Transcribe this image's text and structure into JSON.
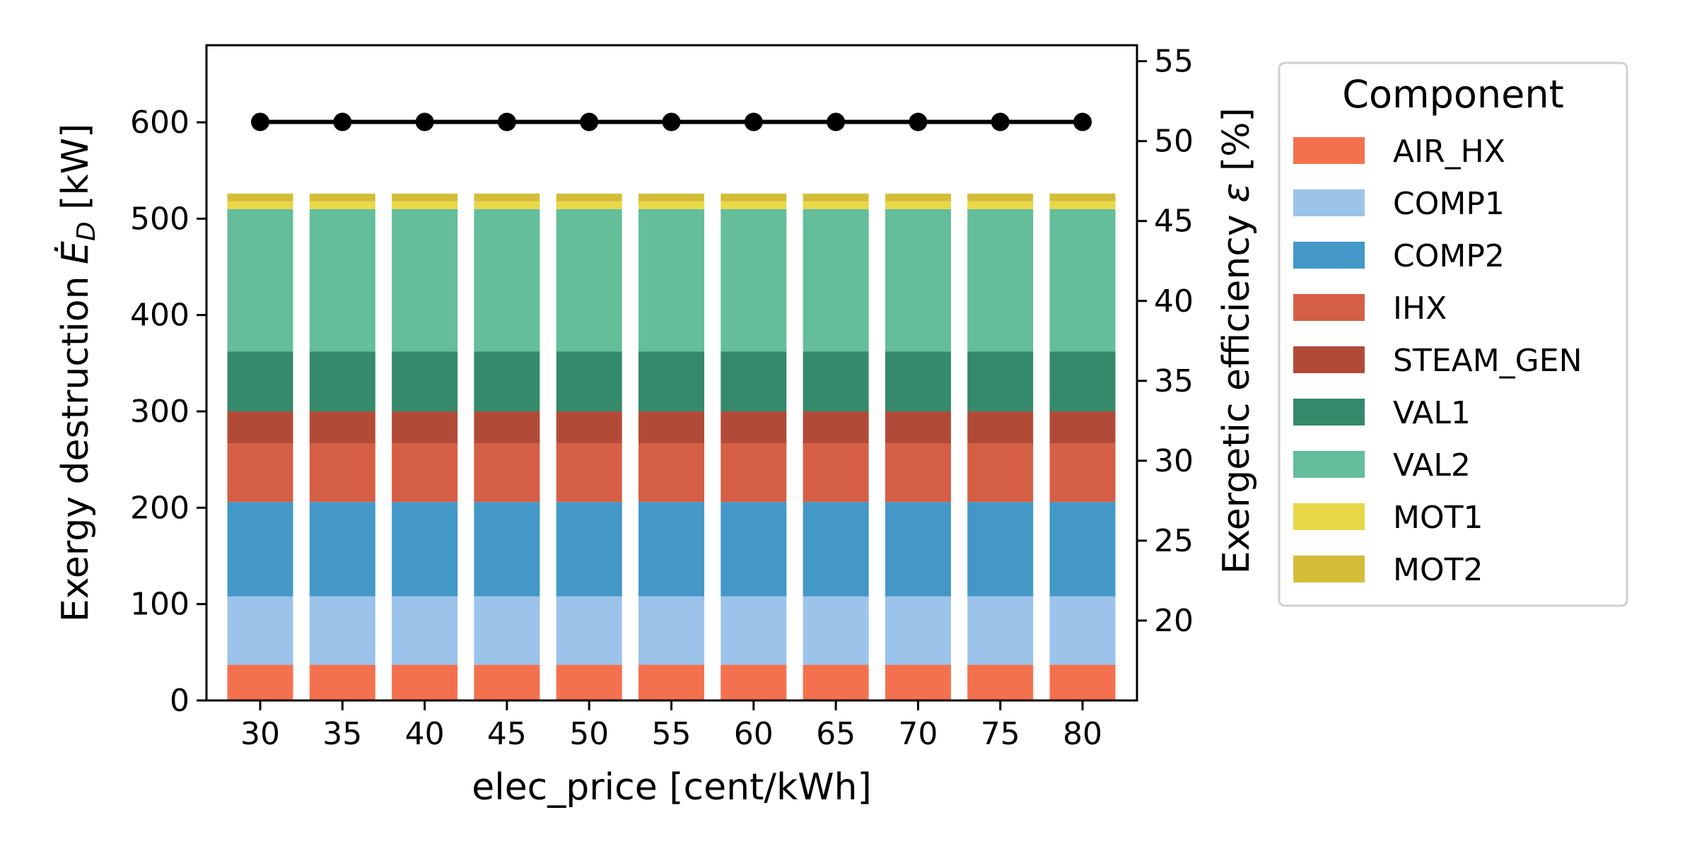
{
  "chart_data": {
    "type": "bar",
    "stacked": true,
    "xlabel": "elec_price [cent/kWh]",
    "ylabel_left": {
      "main": "Exergy destruction ",
      "symbol": "Ė",
      "sub": "D",
      "unit": " [kW]"
    },
    "ylabel_right": {
      "main": "Exergetic efficiency ",
      "symbol": "ε",
      "unit": " [%]"
    },
    "categories": [
      "30",
      "35",
      "40",
      "45",
      "50",
      "55",
      "60",
      "65",
      "70",
      "75",
      "80"
    ],
    "x_values": [
      30,
      35,
      40,
      45,
      50,
      55,
      60,
      65,
      70,
      75,
      80
    ],
    "ylim_left": [
      0,
      680
    ],
    "yticks_left": [
      0,
      100,
      200,
      300,
      400,
      500,
      600
    ],
    "ylim_right": [
      15,
      56
    ],
    "yticks_right": [
      20,
      25,
      30,
      35,
      40,
      45,
      50,
      55
    ],
    "series": [
      {
        "name": "AIR_HX",
        "color": "#f4714f",
        "values": [
          37,
          37,
          37,
          37,
          37,
          37,
          37,
          37,
          37,
          37,
          37
        ]
      },
      {
        "name": "COMP1",
        "color": "#9cc3ea",
        "values": [
          71,
          71,
          71,
          71,
          71,
          71,
          71,
          71,
          71,
          71,
          71
        ]
      },
      {
        "name": "COMP2",
        "color": "#4398c8",
        "values": [
          98,
          98,
          98,
          98,
          98,
          98,
          98,
          98,
          98,
          98,
          98
        ]
      },
      {
        "name": "IHX",
        "color": "#d55f45",
        "values": [
          61,
          61,
          61,
          61,
          61,
          61,
          61,
          61,
          61,
          61,
          61
        ]
      },
      {
        "name": "STEAM_GEN",
        "color": "#b14b37",
        "values": [
          33,
          33,
          33,
          33,
          33,
          33,
          33,
          33,
          33,
          33,
          33
        ]
      },
      {
        "name": "VAL1",
        "color": "#348a6b",
        "values": [
          62,
          62,
          62,
          62,
          62,
          62,
          62,
          62,
          62,
          62,
          62
        ]
      },
      {
        "name": "VAL2",
        "color": "#63be99",
        "values": [
          148,
          148,
          148,
          148,
          148,
          148,
          148,
          148,
          148,
          148,
          148
        ]
      },
      {
        "name": "MOT1",
        "color": "#ead748",
        "values": [
          8,
          8,
          8,
          8,
          8,
          8,
          8,
          8,
          8,
          8,
          8
        ]
      },
      {
        "name": "MOT2",
        "color": "#d3bd38",
        "values": [
          8,
          8,
          8,
          8,
          8,
          8,
          8,
          8,
          8,
          8,
          8
        ]
      }
    ],
    "line_series": {
      "axis": "right",
      "color": "#000000",
      "values": [
        51.2,
        51.2,
        51.2,
        51.2,
        51.2,
        51.2,
        51.2,
        51.2,
        51.2,
        51.2,
        51.2
      ]
    },
    "legend": {
      "title": "Component",
      "placement": "outside right"
    },
    "grid": false
  }
}
